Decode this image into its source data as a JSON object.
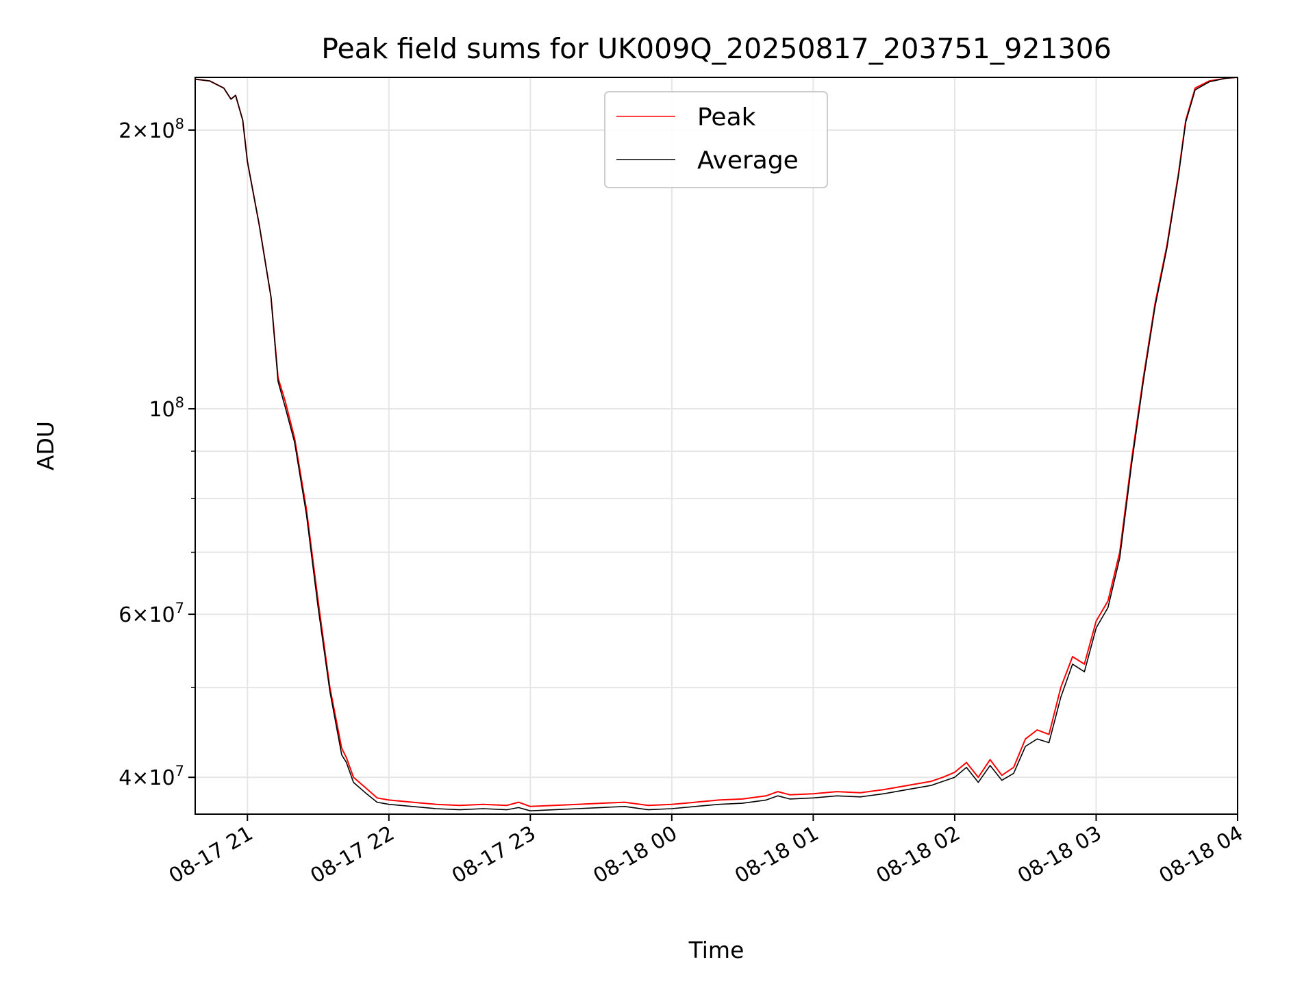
{
  "chart_data": {
    "type": "line",
    "title": "Peak field sums for UK009Q_20250817_203751_921306",
    "xlabel": "Time",
    "ylabel": "ADU",
    "yscale": "log",
    "ylim": [
      36500000,
      228000000
    ],
    "xlim": [
      "2025-08-17 20:37:51",
      "2025-08-18 04:00:00"
    ],
    "grid": true,
    "legend_position": "top-center",
    "x_ticks": [
      "08-17 21",
      "08-17 22",
      "08-17 23",
      "08-18 00",
      "08-18 01",
      "08-18 02",
      "08-18 03",
      "08-18 04"
    ],
    "x_tick_values": [
      "2025-08-17 21:00",
      "2025-08-17 22:00",
      "2025-08-17 23:00",
      "2025-08-18 00:00",
      "2025-08-18 01:00",
      "2025-08-18 02:00",
      "2025-08-18 03:00",
      "2025-08-18 04:00"
    ],
    "y_ticks": [
      {
        "value": 40000000,
        "mantissa": "4",
        "exponent": "7"
      },
      {
        "value": 60000000,
        "mantissa": "6",
        "exponent": "7"
      },
      {
        "value": 100000000,
        "mantissa": "",
        "exponent": "8"
      },
      {
        "value": 200000000,
        "mantissa": "2",
        "exponent": "8"
      }
    ],
    "y_minor_ticks": [
      50000000,
      70000000,
      80000000,
      90000000
    ],
    "series": [
      {
        "name": "Peak",
        "color": "#ff0000",
        "x": [
          "2025-08-17 20:37:51",
          "2025-08-17 20:44",
          "2025-08-17 20:50",
          "2025-08-17 20:53",
          "2025-08-17 20:55",
          "2025-08-17 20:58",
          "2025-08-17 21:00",
          "2025-08-17 21:05",
          "2025-08-17 21:10",
          "2025-08-17 21:13",
          "2025-08-17 21:16",
          "2025-08-17 21:20",
          "2025-08-17 21:25",
          "2025-08-17 21:30",
          "2025-08-17 21:35",
          "2025-08-17 21:40",
          "2025-08-17 21:42",
          "2025-08-17 21:45",
          "2025-08-17 21:50",
          "2025-08-17 21:55",
          "2025-08-17 22:00",
          "2025-08-17 22:10",
          "2025-08-17 22:20",
          "2025-08-17 22:30",
          "2025-08-17 22:40",
          "2025-08-17 22:50",
          "2025-08-17 22:55",
          "2025-08-17 23:00",
          "2025-08-17 23:10",
          "2025-08-17 23:20",
          "2025-08-17 23:30",
          "2025-08-17 23:40",
          "2025-08-17 23:50",
          "2025-08-18 00:00",
          "2025-08-18 00:10",
          "2025-08-18 00:20",
          "2025-08-18 00:30",
          "2025-08-18 00:40",
          "2025-08-18 00:45",
          "2025-08-18 00:50",
          "2025-08-18 01:00",
          "2025-08-18 01:10",
          "2025-08-18 01:20",
          "2025-08-18 01:30",
          "2025-08-18 01:40",
          "2025-08-18 01:50",
          "2025-08-18 01:55",
          "2025-08-18 02:00",
          "2025-08-18 02:05",
          "2025-08-18 02:10",
          "2025-08-18 02:15",
          "2025-08-18 02:20",
          "2025-08-18 02:25",
          "2025-08-18 02:30",
          "2025-08-18 02:35",
          "2025-08-18 02:40",
          "2025-08-18 02:45",
          "2025-08-18 02:50",
          "2025-08-18 02:55",
          "2025-08-18 03:00",
          "2025-08-18 03:05",
          "2025-08-18 03:10",
          "2025-08-18 03:15",
          "2025-08-18 03:20",
          "2025-08-18 03:25",
          "2025-08-18 03:30",
          "2025-08-18 03:35",
          "2025-08-18 03:38",
          "2025-08-18 03:42",
          "2025-08-18 03:48",
          "2025-08-18 03:55",
          "2025-08-18 04:00"
        ],
        "values": [
          227000000,
          226000000,
          222000000,
          216000000,
          218000000,
          205000000,
          185000000,
          158000000,
          132000000,
          108000000,
          102000000,
          93000000,
          78000000,
          62000000,
          50000000,
          43000000,
          42000000,
          40000000,
          39000000,
          38000000,
          37800000,
          37600000,
          37400000,
          37300000,
          37400000,
          37300000,
          37600000,
          37200000,
          37300000,
          37400000,
          37500000,
          37600000,
          37300000,
          37400000,
          37600000,
          37800000,
          37900000,
          38200000,
          38600000,
          38300000,
          38400000,
          38600000,
          38500000,
          38800000,
          39200000,
          39600000,
          40000000,
          40500000,
          41500000,
          40000000,
          41800000,
          40200000,
          41000000,
          44000000,
          45000000,
          44500000,
          50000000,
          54000000,
          53000000,
          59000000,
          62000000,
          70000000,
          88000000,
          108000000,
          130000000,
          150000000,
          180000000,
          205000000,
          222000000,
          226000000,
          227500000,
          228000000
        ]
      },
      {
        "name": "Average",
        "color": "#000000",
        "x": [
          "2025-08-17 20:37:51",
          "2025-08-17 20:44",
          "2025-08-17 20:50",
          "2025-08-17 20:53",
          "2025-08-17 20:55",
          "2025-08-17 20:58",
          "2025-08-17 21:00",
          "2025-08-17 21:05",
          "2025-08-17 21:10",
          "2025-08-17 21:13",
          "2025-08-17 21:16",
          "2025-08-17 21:20",
          "2025-08-17 21:25",
          "2025-08-17 21:30",
          "2025-08-17 21:35",
          "2025-08-17 21:40",
          "2025-08-17 21:42",
          "2025-08-17 21:45",
          "2025-08-17 21:50",
          "2025-08-17 21:55",
          "2025-08-17 22:00",
          "2025-08-17 22:10",
          "2025-08-17 22:20",
          "2025-08-17 22:30",
          "2025-08-17 22:40",
          "2025-08-17 22:50",
          "2025-08-17 22:55",
          "2025-08-17 23:00",
          "2025-08-17 23:10",
          "2025-08-17 23:20",
          "2025-08-17 23:30",
          "2025-08-17 23:40",
          "2025-08-17 23:50",
          "2025-08-18 00:00",
          "2025-08-18 00:10",
          "2025-08-18 00:20",
          "2025-08-18 00:30",
          "2025-08-18 00:40",
          "2025-08-18 00:45",
          "2025-08-18 00:50",
          "2025-08-18 01:00",
          "2025-08-18 01:10",
          "2025-08-18 01:20",
          "2025-08-18 01:30",
          "2025-08-18 01:40",
          "2025-08-18 01:50",
          "2025-08-18 01:55",
          "2025-08-18 02:00",
          "2025-08-18 02:05",
          "2025-08-18 02:10",
          "2025-08-18 02:15",
          "2025-08-18 02:20",
          "2025-08-18 02:25",
          "2025-08-18 02:30",
          "2025-08-18 02:35",
          "2025-08-18 02:40",
          "2025-08-18 02:45",
          "2025-08-18 02:50",
          "2025-08-18 02:55",
          "2025-08-18 03:00",
          "2025-08-18 03:05",
          "2025-08-18 03:10",
          "2025-08-18 03:15",
          "2025-08-18 03:20",
          "2025-08-18 03:25",
          "2025-08-18 03:30",
          "2025-08-18 03:35",
          "2025-08-18 03:38",
          "2025-08-18 03:42",
          "2025-08-18 03:48",
          "2025-08-18 03:55",
          "2025-08-18 04:00"
        ],
        "values": [
          227000000,
          226000000,
          222000000,
          216000000,
          218000000,
          205000000,
          185000000,
          158000000,
          132000000,
          107000000,
          100500000,
          92000000,
          77000000,
          61000000,
          49500000,
          42300000,
          41500000,
          39500000,
          38500000,
          37600000,
          37400000,
          37200000,
          37000000,
          36900000,
          37000000,
          36900000,
          37100000,
          36800000,
          36900000,
          37000000,
          37100000,
          37200000,
          36900000,
          37000000,
          37200000,
          37400000,
          37500000,
          37800000,
          38200000,
          37900000,
          38000000,
          38200000,
          38100000,
          38400000,
          38800000,
          39200000,
          39600000,
          40000000,
          41000000,
          39500000,
          41200000,
          39700000,
          40400000,
          43200000,
          44000000,
          43600000,
          48800000,
          53000000,
          52000000,
          58000000,
          61000000,
          69000000,
          87000000,
          107000000,
          129000000,
          149000000,
          179000000,
          204000000,
          221000000,
          225500000,
          227500000,
          228000000
        ]
      }
    ]
  }
}
